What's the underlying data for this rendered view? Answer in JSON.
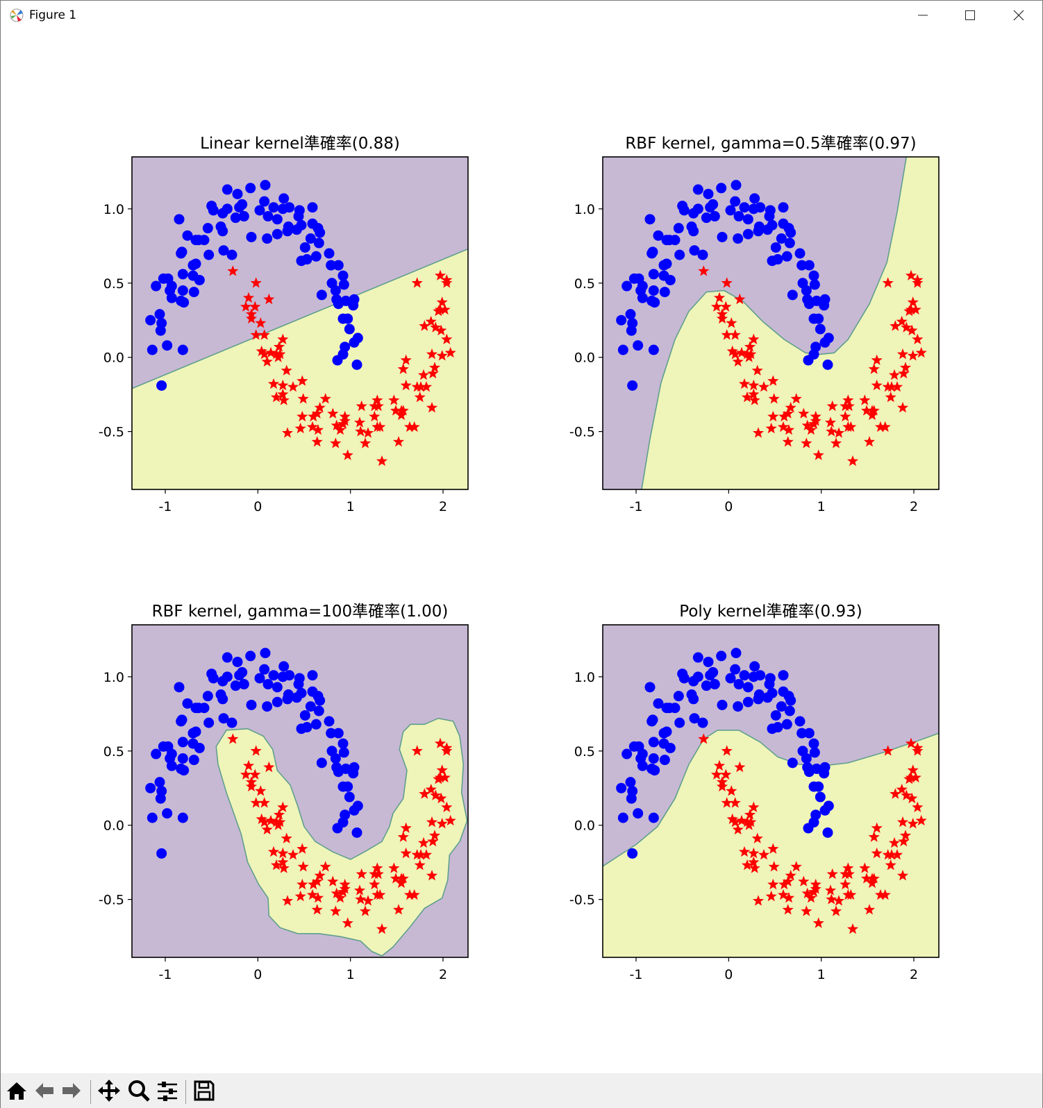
{
  "window": {
    "title": "Figure 1",
    "icon": "matplotlib-icon",
    "buttons": [
      "minimize-icon",
      "maximize-icon",
      "close-icon"
    ]
  },
  "toolbar": {
    "buttons": [
      "home-icon",
      "back-arrow-icon",
      "forward-arrow-icon",
      "pan-icon",
      "zoom-icon",
      "configure-subplots-icon",
      "save-icon"
    ]
  },
  "colors": {
    "class0_region": "#c7b9d3",
    "class1_region": "#eff4b9",
    "boundary": "#5f9f8e",
    "class0_marker": "#0000ff",
    "class1_marker": "#ff0000"
  },
  "points": {
    "class0_blue_circles": [
      [
        -0.33,
        1.13
      ],
      [
        -0.22,
        1.1
      ],
      [
        -0.08,
        1.14
      ],
      [
        0.08,
        1.16
      ],
      [
        0.28,
        1.07
      ],
      [
        0.07,
        1.05
      ],
      [
        0.17,
        1.01
      ],
      [
        0.27,
        1.0
      ],
      [
        0.34,
        1.01
      ],
      [
        0.45,
        0.99
      ],
      [
        0.59,
        1.01
      ],
      [
        -0.5,
        1.02
      ],
      [
        -0.48,
        0.99
      ],
      [
        -0.38,
        0.97
      ],
      [
        -0.33,
        1.0
      ],
      [
        -0.2,
        1.01
      ],
      [
        -0.17,
        1.03
      ],
      [
        -0.15,
        0.95
      ],
      [
        -0.24,
        0.94
      ],
      [
        0.02,
        0.99
      ],
      [
        0.11,
        0.95
      ],
      [
        0.21,
        0.93
      ],
      [
        0.44,
        0.95
      ],
      [
        -0.85,
        0.93
      ],
      [
        -0.76,
        0.82
      ],
      [
        -0.67,
        0.79
      ],
      [
        -0.64,
        0.79
      ],
      [
        -0.58,
        0.79
      ],
      [
        -0.54,
        0.87
      ],
      [
        -0.4,
        0.88
      ],
      [
        -0.38,
        0.85
      ],
      [
        -0.07,
        0.81
      ],
      [
        0.1,
        0.8
      ],
      [
        0.21,
        0.83
      ],
      [
        0.33,
        0.88
      ],
      [
        0.32,
        0.85
      ],
      [
        0.42,
        0.86
      ],
      [
        0.47,
        0.89
      ],
      [
        0.59,
        0.9
      ],
      [
        0.65,
        0.87
      ],
      [
        0.67,
        0.84
      ],
      [
        0.57,
        0.8
      ],
      [
        0.66,
        0.77
      ],
      [
        0.51,
        0.74
      ],
      [
        0.47,
        0.65
      ],
      [
        0.53,
        0.66
      ],
      [
        0.63,
        0.68
      ],
      [
        0.77,
        0.7
      ],
      [
        0.79,
        0.62
      ],
      [
        0.87,
        0.62
      ],
      [
        0.92,
        0.55
      ],
      [
        0.93,
        0.49
      ],
      [
        0.8,
        0.5
      ],
      [
        0.84,
        0.45
      ],
      [
        0.69,
        0.42
      ],
      [
        0.85,
        0.39
      ],
      [
        0.87,
        0.36
      ],
      [
        0.95,
        0.38
      ],
      [
        1.04,
        0.39
      ],
      [
        1.03,
        0.35
      ],
      [
        0.92,
        0.26
      ],
      [
        0.97,
        0.26
      ],
      [
        0.99,
        0.19
      ],
      [
        1.04,
        0.1
      ],
      [
        1.08,
        0.13
      ],
      [
        0.94,
        0.07
      ],
      [
        0.92,
        0.02
      ],
      [
        0.86,
        -0.02
      ],
      [
        1.07,
        -0.05
      ],
      [
        -0.83,
        0.7
      ],
      [
        -0.82,
        0.71
      ],
      [
        -0.53,
        0.69
      ],
      [
        -0.37,
        0.72
      ],
      [
        -0.28,
        0.69
      ],
      [
        -0.7,
        0.62
      ],
      [
        -0.67,
        0.63
      ],
      [
        -0.81,
        0.56
      ],
      [
        -0.7,
        0.55
      ],
      [
        -0.63,
        0.52
      ],
      [
        -1.02,
        0.53
      ],
      [
        -0.97,
        0.53
      ],
      [
        -0.93,
        0.48
      ],
      [
        -0.95,
        0.45
      ],
      [
        -0.93,
        0.4
      ],
      [
        -0.83,
        0.38
      ],
      [
        -0.8,
        0.37
      ],
      [
        -0.81,
        0.45
      ],
      [
        -0.69,
        0.44
      ],
      [
        -1.1,
        0.48
      ],
      [
        -1.06,
        0.29
      ],
      [
        -1.16,
        0.25
      ],
      [
        -1.04,
        0.23
      ],
      [
        -1.05,
        0.18
      ],
      [
        -1.14,
        0.05
      ],
      [
        -0.98,
        0.08
      ],
      [
        -0.81,
        0.05
      ],
      [
        -1.04,
        -0.19
      ]
    ],
    "class1_red_stars": [
      [
        -0.27,
        0.58
      ],
      [
        -0.02,
        0.5
      ],
      [
        0.12,
        0.39
      ],
      [
        -0.1,
        0.4
      ],
      [
        -0.13,
        0.34
      ],
      [
        -0.03,
        0.34
      ],
      [
        -0.07,
        0.29
      ],
      [
        -0.07,
        0.26
      ],
      [
        0.03,
        0.23
      ],
      [
        -0.02,
        0.15
      ],
      [
        0.07,
        0.15
      ],
      [
        0.27,
        0.12
      ],
      [
        0.23,
        0.07
      ],
      [
        0.04,
        0.04
      ],
      [
        0.07,
        0.02
      ],
      [
        0.14,
        0.03
      ],
      [
        0.2,
        0.02
      ],
      [
        0.22,
        0.0
      ],
      [
        0.24,
        0.02
      ],
      [
        0.1,
        -0.03
      ],
      [
        0.31,
        -0.09
      ],
      [
        0.17,
        -0.18
      ],
      [
        0.27,
        -0.19
      ],
      [
        0.38,
        -0.2
      ],
      [
        0.48,
        -0.16
      ],
      [
        0.2,
        -0.27
      ],
      [
        0.27,
        -0.25
      ],
      [
        0.28,
        -0.29
      ],
      [
        0.49,
        -0.28
      ],
      [
        0.73,
        -0.28
      ],
      [
        0.67,
        -0.34
      ],
      [
        0.64,
        -0.38
      ],
      [
        0.6,
        -0.4
      ],
      [
        0.48,
        -0.4
      ],
      [
        0.81,
        -0.38
      ],
      [
        0.94,
        -0.4
      ],
      [
        0.94,
        -0.43
      ],
      [
        0.92,
        -0.45
      ],
      [
        0.89,
        -0.49
      ],
      [
        0.85,
        -0.46
      ],
      [
        0.65,
        -0.49
      ],
      [
        0.59,
        -0.47
      ],
      [
        0.46,
        -0.48
      ],
      [
        0.32,
        -0.51
      ],
      [
        0.64,
        -0.57
      ],
      [
        0.84,
        -0.58
      ],
      [
        0.97,
        -0.66
      ],
      [
        1.1,
        -0.44
      ],
      [
        1.12,
        -0.33
      ],
      [
        1.26,
        -0.33
      ],
      [
        1.29,
        -0.29
      ],
      [
        1.3,
        -0.33
      ],
      [
        1.26,
        -0.4
      ],
      [
        1.29,
        -0.47
      ],
      [
        1.32,
        -0.47
      ],
      [
        1.11,
        -0.5
      ],
      [
        1.19,
        -0.51
      ],
      [
        1.16,
        -0.58
      ],
      [
        1.34,
        -0.7
      ],
      [
        1.47,
        -0.29
      ],
      [
        1.49,
        -0.36
      ],
      [
        1.55,
        -0.36
      ],
      [
        1.55,
        -0.39
      ],
      [
        1.57,
        -0.36
      ],
      [
        1.52,
        -0.57
      ],
      [
        1.64,
        -0.47
      ],
      [
        1.69,
        -0.47
      ],
      [
        1.6,
        -0.19
      ],
      [
        1.57,
        -0.08
      ],
      [
        1.6,
        -0.02
      ],
      [
        1.72,
        -0.2
      ],
      [
        1.76,
        -0.2
      ],
      [
        1.82,
        -0.2
      ],
      [
        1.75,
        -0.27
      ],
      [
        1.88,
        -0.34
      ],
      [
        1.79,
        -0.12
      ],
      [
        1.91,
        -0.07
      ],
      [
        1.89,
        -0.11
      ],
      [
        1.88,
        0.02
      ],
      [
        1.99,
        0.01
      ],
      [
        2.08,
        0.03
      ],
      [
        2.04,
        0.12
      ],
      [
        1.98,
        0.18
      ],
      [
        1.92,
        0.2
      ],
      [
        1.87,
        0.24
      ],
      [
        1.8,
        0.21
      ],
      [
        1.97,
        0.32
      ],
      [
        2.02,
        0.32
      ],
      [
        1.95,
        0.31
      ],
      [
        1.99,
        0.37
      ],
      [
        1.72,
        0.5
      ],
      [
        1.97,
        0.55
      ],
      [
        2.04,
        0.5
      ],
      [
        2.04,
        0.52
      ]
    ]
  },
  "chart_data": [
    {
      "type": "scatter",
      "title": "Linear kernel準確率(0.88)",
      "xlim": [
        -1.36,
        2.27
      ],
      "ylim": [
        -0.89,
        1.35
      ],
      "xticks": [
        -1,
        0,
        1,
        2
      ],
      "xtick_labels": [
        "-1",
        "0",
        "1",
        "2"
      ],
      "yticks": [
        -0.5,
        0,
        0.5,
        1.0
      ],
      "ytick_labels": [
        "-0.5",
        "0.0",
        "0.5",
        "1.0"
      ],
      "accuracy": 0.88,
      "region_mode": "below-curve",
      "boundary": [
        [
          -1.36,
          -0.21
        ],
        [
          2.27,
          0.73
        ]
      ]
    },
    {
      "type": "scatter",
      "title": "RBF kernel, gamma=0.5準確率(0.97)",
      "xlim": [
        -1.36,
        2.27
      ],
      "ylim": [
        -0.89,
        1.35
      ],
      "xticks": [
        -1,
        0,
        1,
        2
      ],
      "xtick_labels": [
        "-1",
        "0",
        "1",
        "2"
      ],
      "yticks": [
        -0.5,
        0,
        0.5,
        1.0
      ],
      "ytick_labels": [
        "-0.5",
        "0.0",
        "0.5",
        "1.0"
      ],
      "accuracy": 0.97,
      "region_mode": "right-of-curve",
      "boundary": [
        [
          -0.94,
          -0.89
        ],
        [
          -0.85,
          -0.55
        ],
        [
          -0.73,
          -0.17
        ],
        [
          -0.58,
          0.12
        ],
        [
          -0.43,
          0.31
        ],
        [
          -0.24,
          0.44
        ],
        [
          -0.05,
          0.45
        ],
        [
          0.15,
          0.38
        ],
        [
          0.37,
          0.24
        ],
        [
          0.6,
          0.12
        ],
        [
          0.83,
          0.03
        ],
        [
          0.98,
          0.02
        ],
        [
          1.14,
          0.03
        ],
        [
          1.29,
          0.12
        ],
        [
          1.52,
          0.36
        ],
        [
          1.71,
          0.64
        ],
        [
          1.82,
          0.98
        ],
        [
          1.92,
          1.35
        ]
      ]
    },
    {
      "type": "scatter",
      "title": "RBF kernel, gamma=100準確率(1.00)",
      "xlim": [
        -1.36,
        2.27
      ],
      "ylim": [
        -0.89,
        1.35
      ],
      "xticks": [
        -1,
        0,
        1,
        2
      ],
      "xtick_labels": [
        "-1",
        "0",
        "1",
        "2"
      ],
      "yticks": [
        -0.5,
        0,
        0.5,
        1.0
      ],
      "ytick_labels": [
        "-0.5",
        "0.0",
        "0.5",
        "1.0"
      ],
      "accuracy": 1.0,
      "region_mode": "closed",
      "boundary": [
        [
          -0.34,
          0.64
        ],
        [
          -0.11,
          0.65
        ],
        [
          0.06,
          0.6
        ],
        [
          0.16,
          0.51
        ],
        [
          0.21,
          0.37
        ],
        [
          0.35,
          0.27
        ],
        [
          0.43,
          0.13
        ],
        [
          0.5,
          -0.01
        ],
        [
          0.62,
          -0.11
        ],
        [
          0.81,
          -0.18
        ],
        [
          1.0,
          -0.23
        ],
        [
          1.15,
          -0.18
        ],
        [
          1.34,
          -0.11
        ],
        [
          1.42,
          -0.01
        ],
        [
          1.46,
          0.08
        ],
        [
          1.57,
          0.18
        ],
        [
          1.61,
          0.37
        ],
        [
          1.53,
          0.51
        ],
        [
          1.57,
          0.63
        ],
        [
          1.65,
          0.68
        ],
        [
          1.8,
          0.68
        ],
        [
          1.95,
          0.72
        ],
        [
          2.11,
          0.7
        ],
        [
          2.18,
          0.6
        ],
        [
          2.22,
          0.41
        ],
        [
          2.2,
          0.22
        ],
        [
          2.26,
          0.03
        ],
        [
          2.18,
          -0.11
        ],
        [
          2.07,
          -0.2
        ],
        [
          2.05,
          -0.37
        ],
        [
          1.99,
          -0.49
        ],
        [
          1.8,
          -0.56
        ],
        [
          1.65,
          -0.68
        ],
        [
          1.46,
          -0.82
        ],
        [
          1.34,
          -0.88
        ],
        [
          1.23,
          -0.85
        ],
        [
          1.11,
          -0.78
        ],
        [
          0.89,
          -0.75
        ],
        [
          0.66,
          -0.73
        ],
        [
          0.43,
          -0.73
        ],
        [
          0.24,
          -0.69
        ],
        [
          0.12,
          -0.61
        ],
        [
          0.11,
          -0.49
        ],
        [
          0.01,
          -0.4
        ],
        [
          -0.11,
          -0.25
        ],
        [
          -0.18,
          -0.06
        ],
        [
          -0.34,
          0.22
        ],
        [
          -0.43,
          0.41
        ],
        [
          -0.45,
          0.53
        ]
      ]
    },
    {
      "type": "scatter",
      "title": "Poly kernel準確率(0.93)",
      "xlim": [
        -1.36,
        2.27
      ],
      "ylim": [
        -0.89,
        1.35
      ],
      "xticks": [
        -1,
        0,
        1,
        2
      ],
      "xtick_labels": [
        "-1",
        "0",
        "1",
        "2"
      ],
      "yticks": [
        -0.5,
        0,
        0.5,
        1.0
      ],
      "ytick_labels": [
        "-0.5",
        "0.0",
        "0.5",
        "1.0"
      ],
      "accuracy": 0.93,
      "region_mode": "below-curve",
      "boundary": [
        [
          -1.37,
          -0.28
        ],
        [
          -1.0,
          -0.13
        ],
        [
          -0.77,
          -0.01
        ],
        [
          -0.58,
          0.18
        ],
        [
          -0.43,
          0.41
        ],
        [
          -0.27,
          0.58
        ],
        [
          -0.12,
          0.64
        ],
        [
          0.11,
          0.64
        ],
        [
          0.34,
          0.56
        ],
        [
          0.53,
          0.46
        ],
        [
          0.76,
          0.41
        ],
        [
          1.02,
          0.4
        ],
        [
          1.29,
          0.42
        ],
        [
          1.67,
          0.49
        ],
        [
          2.05,
          0.57
        ],
        [
          2.27,
          0.62
        ]
      ]
    }
  ]
}
